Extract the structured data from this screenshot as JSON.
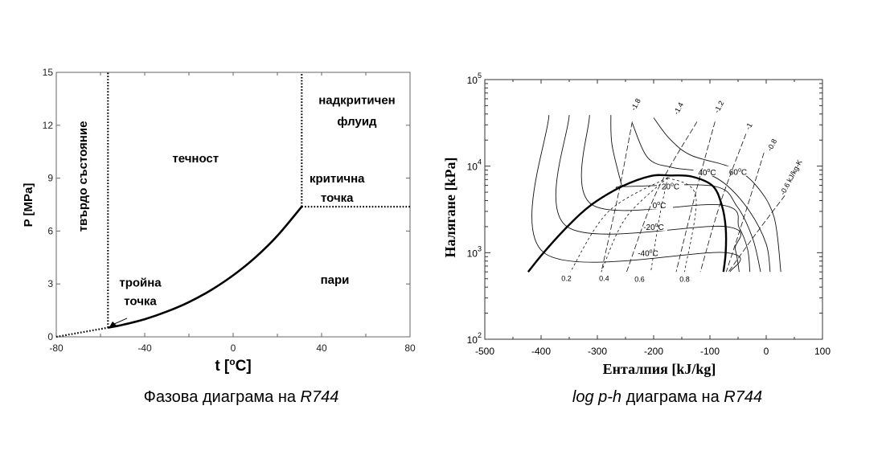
{
  "chart_data": [
    {
      "type": "line",
      "caption": {
        "text": "Фазова диаграма на ",
        "italic": "R744"
      },
      "xlabel": {
        "pre": "t [",
        "sup": "o",
        "post": "C]"
      },
      "ylabel": "P [MPa]",
      "xlim": [
        -80,
        80
      ],
      "ylim": [
        0,
        15
      ],
      "xticks": [
        -80,
        -40,
        0,
        40,
        80
      ],
      "yticks": [
        0,
        3,
        6,
        9,
        12,
        15
      ],
      "grid": false,
      "series": [
        {
          "style": "solid-thick",
          "points": [
            [
              -56.6,
              0.52
            ],
            [
              -50,
              0.68
            ],
            [
              -40,
              1.0
            ],
            [
              -30,
              1.43
            ],
            [
              -20,
              1.97
            ],
            [
              -10,
              2.65
            ],
            [
              0,
              3.49
            ],
            [
              10,
              4.5
            ],
            [
              20,
              5.73
            ],
            [
              31,
              7.38
            ]
          ]
        },
        {
          "style": "dotted",
          "points": [
            [
              -80,
              0
            ],
            [
              -56.6,
              0.52
            ]
          ]
        },
        {
          "style": "dotted",
          "points": [
            [
              -56.6,
              0.52
            ],
            [
              -56.6,
              15
            ]
          ]
        },
        {
          "style": "dotted",
          "points": [
            [
              31,
              7.38
            ],
            [
              31,
              15
            ]
          ]
        },
        {
          "style": "dotted",
          "points": [
            [
              31,
              7.38
            ],
            [
              80,
              7.38
            ]
          ]
        }
      ],
      "annotations": [
        {
          "text": "надкритичен",
          "x": 56,
          "y": 13.2
        },
        {
          "text": "флуид",
          "x": 56,
          "y": 12.0
        },
        {
          "text": "течност",
          "x": -17,
          "y": 9.9
        },
        {
          "text": "критична",
          "x": 47,
          "y": 8.75
        },
        {
          "text": "точка",
          "x": 47,
          "y": 7.65
        },
        {
          "text": "пари",
          "x": 46,
          "y": 3.0
        },
        {
          "text": "тройна",
          "x": -42,
          "y": 2.85
        },
        {
          "text": "точка",
          "x": -42,
          "y": 1.8
        }
      ],
      "vertical_annotation": {
        "text": "твърдо състояние",
        "x": -68,
        "y": 9.1
      },
      "arrow": {
        "from": [
          -48,
          1.05
        ],
        "to": [
          -56,
          0.55
        ]
      }
    },
    {
      "type": "line",
      "caption": {
        "italic": "log p-h",
        "text": " диаграма на ",
        "italic2": "R744"
      },
      "xlabel": "Енталпия [kJ/kg]",
      "ylabel": "Налягане [kPa]",
      "xlim": [
        -500,
        100
      ],
      "ylim": [
        100,
        100000
      ],
      "yscale": "log",
      "xticks": [
        -500,
        -400,
        -300,
        -200,
        -100,
        0,
        100
      ],
      "yticks": [
        {
          "base": "10",
          "exp": "2",
          "value": 100
        },
        {
          "base": "10",
          "exp": "3",
          "value": 1000
        },
        {
          "base": "10",
          "exp": "4",
          "value": 10000
        },
        {
          "base": "10",
          "exp": "5",
          "value": 100000
        }
      ],
      "grid": false,
      "saturation_dome": [
        [
          -423,
          600
        ],
        [
          -395,
          1010
        ],
        [
          -352,
          2040
        ],
        [
          -310,
          3600
        ],
        [
          -257,
          5800
        ],
        [
          -205,
          7700
        ],
        [
          -171,
          7800
        ],
        [
          -133,
          7600
        ],
        [
          -95,
          5900
        ],
        [
          -79,
          3550
        ],
        [
          -72,
          1950
        ],
        [
          -72,
          1000
        ],
        [
          -76,
          600
        ]
      ],
      "isotherms": [
        {
          "label": "-40",
          "unit": "C",
          "points": [
            [
              -386,
              38900
            ],
            [
              -395,
              1000
            ],
            [
              -72,
              1000
            ],
            [
              -64,
              600
            ]
          ],
          "label_at": [
            -210,
            1000
          ]
        },
        {
          "label": "-20",
          "unit": "C",
          "points": [
            [
              -350,
              38900
            ],
            [
              -354,
              2000
            ],
            [
              -71,
              2000
            ],
            [
              -55,
              1090
            ],
            [
              -48,
              600
            ]
          ],
          "label_at": [
            -200,
            2000
          ]
        },
        {
          "label": "0",
          "unit": "C",
          "points": [
            [
              -314,
              38900
            ],
            [
              -310,
              3600
            ],
            [
              -79,
              3550
            ],
            [
              -48,
              1940
            ],
            [
              -33,
              1090
            ],
            [
              -29,
              600
            ]
          ],
          "label_at": [
            -190,
            3540
          ]
        },
        {
          "label": "20",
          "unit": "C",
          "points": [
            [
              -276,
              38900
            ],
            [
              -274,
              17700
            ],
            [
              -257,
              6080
            ],
            [
              -255,
              5800
            ],
            [
              -95,
              5900
            ],
            [
              -52,
              3440
            ],
            [
              -24,
              1460
            ],
            [
              -10,
              600
            ]
          ],
          "label_at": [
            -170,
            5850
          ]
        },
        {
          "label": "40",
          "unit": "C",
          "points": [
            [
              -238,
              31400
            ],
            [
              -210,
              12400
            ],
            [
              -167,
              9660
            ],
            [
              -114,
              8570
            ],
            [
              -71,
              6080
            ],
            [
              -29,
              2970
            ],
            [
              0,
              1260
            ],
            [
              7,
              600
            ]
          ],
          "label_at": [
            -105,
            8570
          ]
        },
        {
          "label": "60",
          "unit": "C",
          "points": [
            [
              -200,
              36200
            ],
            [
              -171,
              20500
            ],
            [
              -133,
              13300
            ],
            [
              -62,
              9660
            ],
            [
              -19,
              6080
            ],
            [
              14,
              2580
            ],
            [
              26,
              600
            ]
          ],
          "label_at": [
            -50,
            8600
          ]
        }
      ],
      "quality_lines": [
        {
          "label": "0.2",
          "points": [
            [
              -175,
              7380
            ],
            [
              -280,
              3000
            ],
            [
              -348,
              600
            ]
          ],
          "label_at": [
            -355,
            470
          ]
        },
        {
          "label": "0.4",
          "points": [
            [
              -175,
              7380
            ],
            [
              -250,
              2500
            ],
            [
              -293,
              600
            ]
          ],
          "label_at": [
            -288,
            470
          ]
        },
        {
          "label": "0.6",
          "points": [
            [
              -175,
              7380
            ],
            [
              -190,
              2500
            ],
            [
              -205,
              600
            ]
          ],
          "label_at": [
            -225,
            460
          ]
        },
        {
          "label": "0.8",
          "points": [
            [
              -175,
              7380
            ],
            [
              -125,
              4500
            ],
            [
              -145,
              600
            ]
          ],
          "label_at": [
            -145,
            460
          ]
        }
      ],
      "entropy_lines": [
        {
          "label": "-1.8",
          "points": [
            [
              -238,
              32600
            ],
            [
              -262,
              5000
            ],
            [
              -293,
              600
            ]
          ],
          "label_at": [
            -228,
            50000
          ]
        },
        {
          "label": "-1.4",
          "points": [
            [
              -123,
              32600
            ],
            [
              -195,
              5000
            ],
            [
              -248,
              600
            ]
          ],
          "label_at": [
            -152,
            45000
          ]
        },
        {
          "label": "-1.2",
          "points": [
            [
              -91,
              32600
            ],
            [
              -125,
              5000
            ],
            [
              -160,
              600
            ]
          ],
          "label_at": [
            -80,
            47000
          ]
        },
        {
          "label": "-1",
          "points": [
            [
              -36,
              23600
            ],
            [
              -80,
              4000
            ],
            [
              -117,
              600
            ]
          ],
          "label_at": [
            -27,
            28000
          ]
        },
        {
          "label": "-0.8",
          "points": [
            [
              -4,
              14300
            ],
            [
              -40,
              2500
            ],
            [
              -71,
              600
            ]
          ],
          "label_at": [
            14,
            17000
          ]
        },
        {
          "label": "-0.6 kJ/kg-K",
          "points": [
            [
              33,
              4570
            ],
            [
              -20,
              1600
            ],
            [
              -67,
              600
            ]
          ],
          "label_at": [
            48,
            7200
          ]
        }
      ]
    }
  ],
  "colors": {
    "ink": "#000000",
    "axis": "#555555",
    "background": "#ffffff"
  }
}
